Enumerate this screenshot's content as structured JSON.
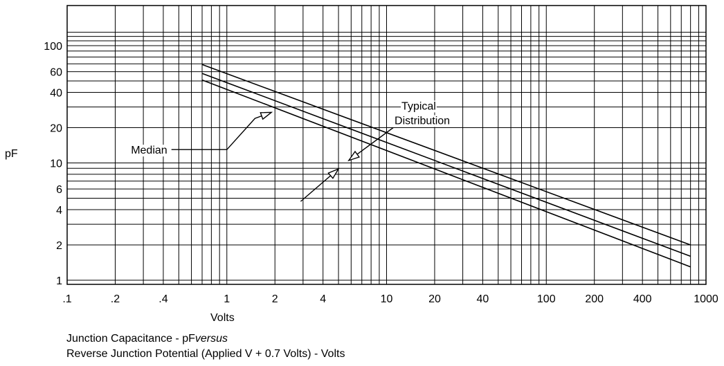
{
  "chart_data": {
    "type": "line",
    "x_scale": "log",
    "y_scale": "log",
    "xlim": [
      0.1,
      1000
    ],
    "ylim": [
      1,
      200
    ],
    "grid": true,
    "xlabel": "Volts",
    "ylabel": "pF",
    "x_tick_labels": [
      {
        "value": 0.1,
        "label": ".1"
      },
      {
        "value": 0.2,
        "label": ".2"
      },
      {
        "value": 0.4,
        "label": ".4"
      },
      {
        "value": 1,
        "label": "1"
      },
      {
        "value": 2,
        "label": "2"
      },
      {
        "value": 4,
        "label": "4"
      },
      {
        "value": 10,
        "label": "10"
      },
      {
        "value": 20,
        "label": "20"
      },
      {
        "value": 40,
        "label": "40"
      },
      {
        "value": 100,
        "label": "100"
      },
      {
        "value": 200,
        "label": "200"
      },
      {
        "value": 400,
        "label": "400"
      },
      {
        "value": 1000,
        "label": "1000"
      }
    ],
    "y_tick_labels": [
      {
        "value": 1,
        "label": "1"
      },
      {
        "value": 2,
        "label": "2"
      },
      {
        "value": 4,
        "label": "4"
      },
      {
        "value": 6,
        "label": "6"
      },
      {
        "value": 10,
        "label": "10"
      },
      {
        "value": 20,
        "label": "20"
      },
      {
        "value": 40,
        "label": "40"
      },
      {
        "value": 60,
        "label": "60"
      },
      {
        "value": 100,
        "label": "100"
      }
    ],
    "series": [
      {
        "x": [
          0.7,
          800
        ],
        "y": [
          69,
          2.0
        ]
      },
      {
        "x": [
          0.7,
          800
        ],
        "y": [
          58,
          1.6
        ]
      },
      {
        "x": [
          0.7,
          800
        ],
        "y": [
          51,
          1.3
        ]
      }
    ],
    "annotations": [
      {
        "label": "Median",
        "points": [
          [
            0.45,
            13
          ],
          [
            1.0,
            13
          ],
          [
            1.5,
            24
          ],
          [
            1.9,
            27
          ]
        ]
      },
      {
        "label": "Typical Distribution",
        "points": [
          [
            11,
            20
          ],
          [
            5.8,
            10.5
          ]
        ]
      },
      {
        "label": "",
        "points": [
          [
            2.9,
            4.7
          ],
          [
            5.0,
            8.9
          ]
        ]
      }
    ]
  },
  "caption": {
    "line1_prefix": "Junction Capacitance - pF",
    "line1_italic": "versus",
    "line2": "Reverse Junction Potential (Applied V + 0.7 Volts) - Volts"
  }
}
